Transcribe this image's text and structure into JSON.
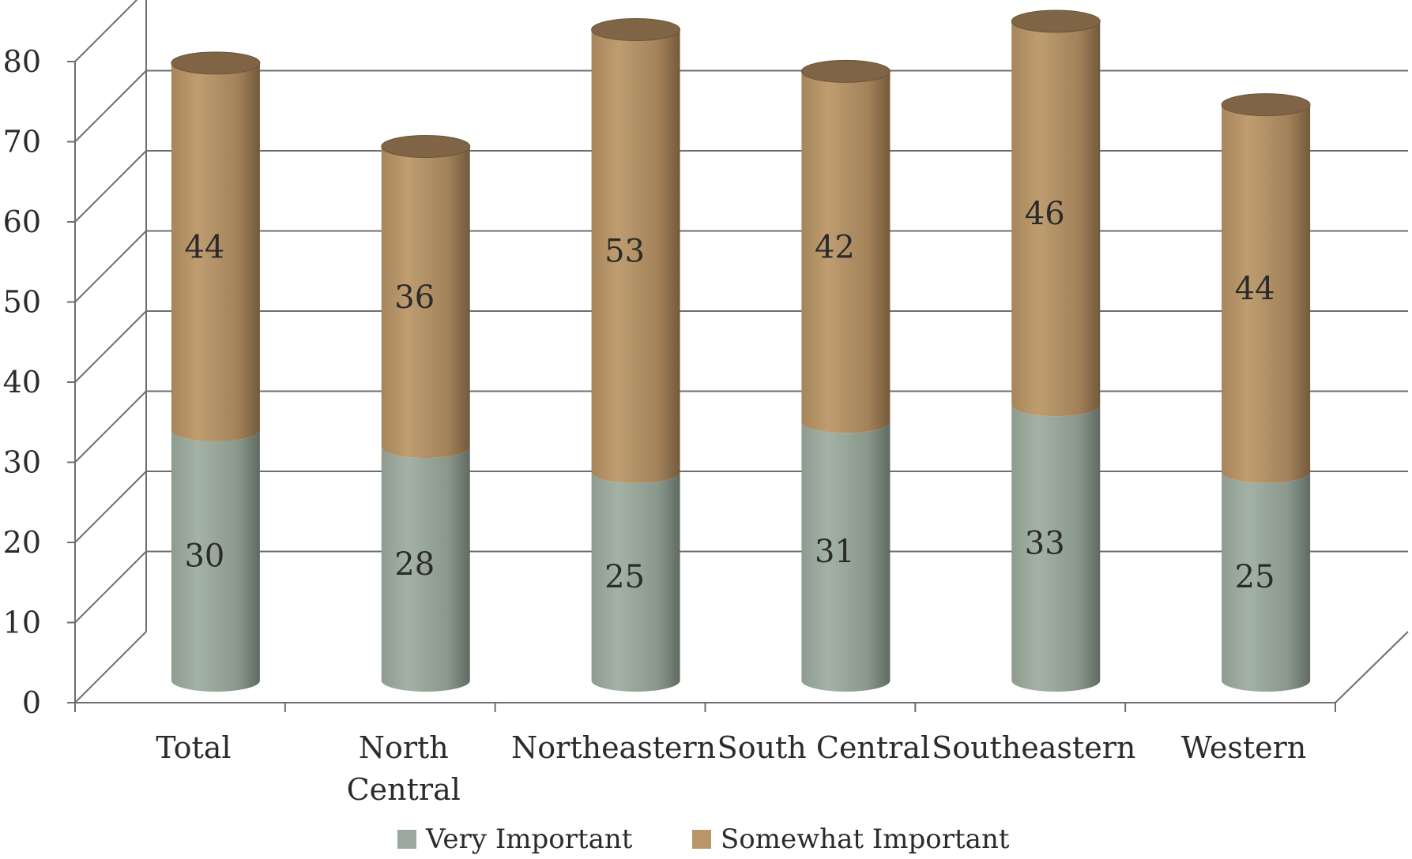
{
  "chart_data": {
    "type": "bar",
    "stacked": true,
    "style": "3d-cylinder",
    "categories": [
      "Total",
      "North Central",
      "Northeastern",
      "South Central",
      "Southeastern",
      "Western"
    ],
    "category_label_lines": [
      [
        "Total"
      ],
      [
        "North",
        "Central"
      ],
      [
        "Northeastern"
      ],
      [
        "South Central"
      ],
      [
        "Southeastern"
      ],
      [
        "Western"
      ]
    ],
    "series": [
      {
        "name": "Very Important",
        "values": [
          30,
          28,
          25,
          31,
          33,
          25
        ],
        "color": "#9aa99c"
      },
      {
        "name": "Somewhat Important",
        "values": [
          44,
          36,
          53,
          42,
          46,
          44
        ],
        "color": "#b8966a"
      }
    ],
    "y_ticks": [
      "0",
      "10",
      "20",
      "30",
      "40",
      "50",
      "60",
      "70",
      "80"
    ],
    "ylim": [
      0,
      80
    ],
    "grid": true,
    "legend": "bottom",
    "title": "",
    "xlabel": "",
    "ylabel": ""
  }
}
